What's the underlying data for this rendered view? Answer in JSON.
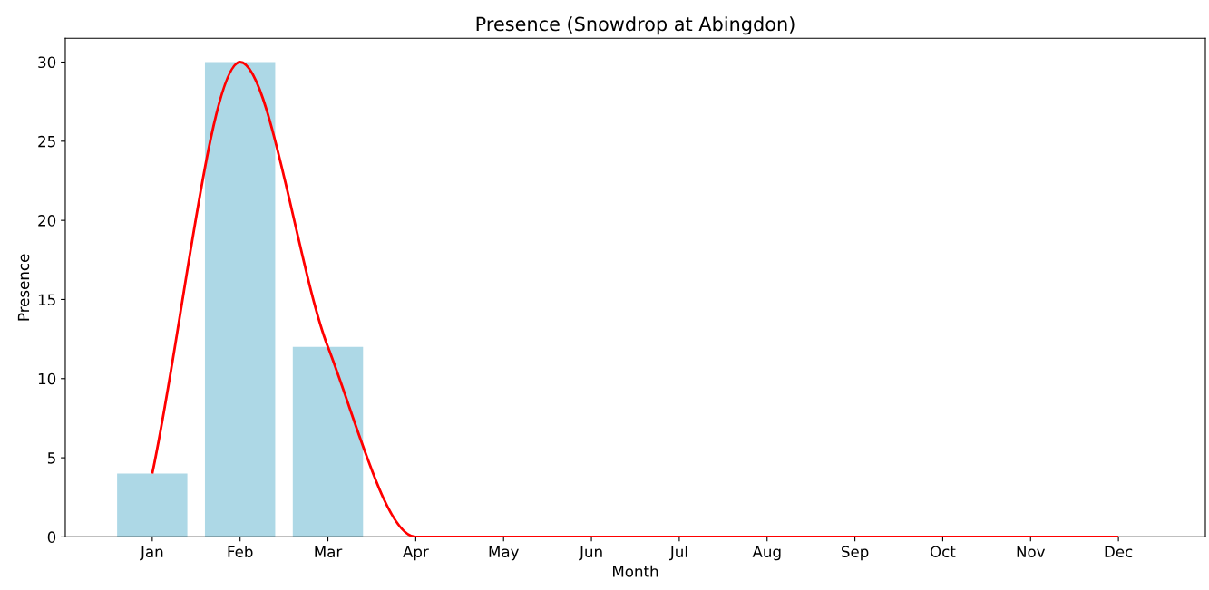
{
  "chart_data": {
    "type": "bar",
    "title": "Presence (Snowdrop at Abingdon)",
    "xlabel": "Month",
    "ylabel": "Presence",
    "categories": [
      "Jan",
      "Feb",
      "Mar",
      "Apr",
      "May",
      "Jun",
      "Jul",
      "Aug",
      "Sep",
      "Oct",
      "Nov",
      "Dec"
    ],
    "series": [
      {
        "color": "#add8e6",
        "values": [
          4,
          30,
          12,
          0,
          0,
          0,
          0,
          0,
          0,
          0,
          0,
          0
        ]
      },
      {
        "type": "line",
        "color": "#ff0000",
        "values": [
          4,
          30,
          12,
          0,
          0,
          0,
          0,
          0,
          0,
          0,
          0,
          0
        ]
      }
    ],
    "ylim": [
      0,
      31.5
    ],
    "yticks": [
      0,
      5,
      10,
      15,
      20,
      25,
      30
    ],
    "grid": false,
    "marker": "none",
    "line_style": "solid"
  }
}
